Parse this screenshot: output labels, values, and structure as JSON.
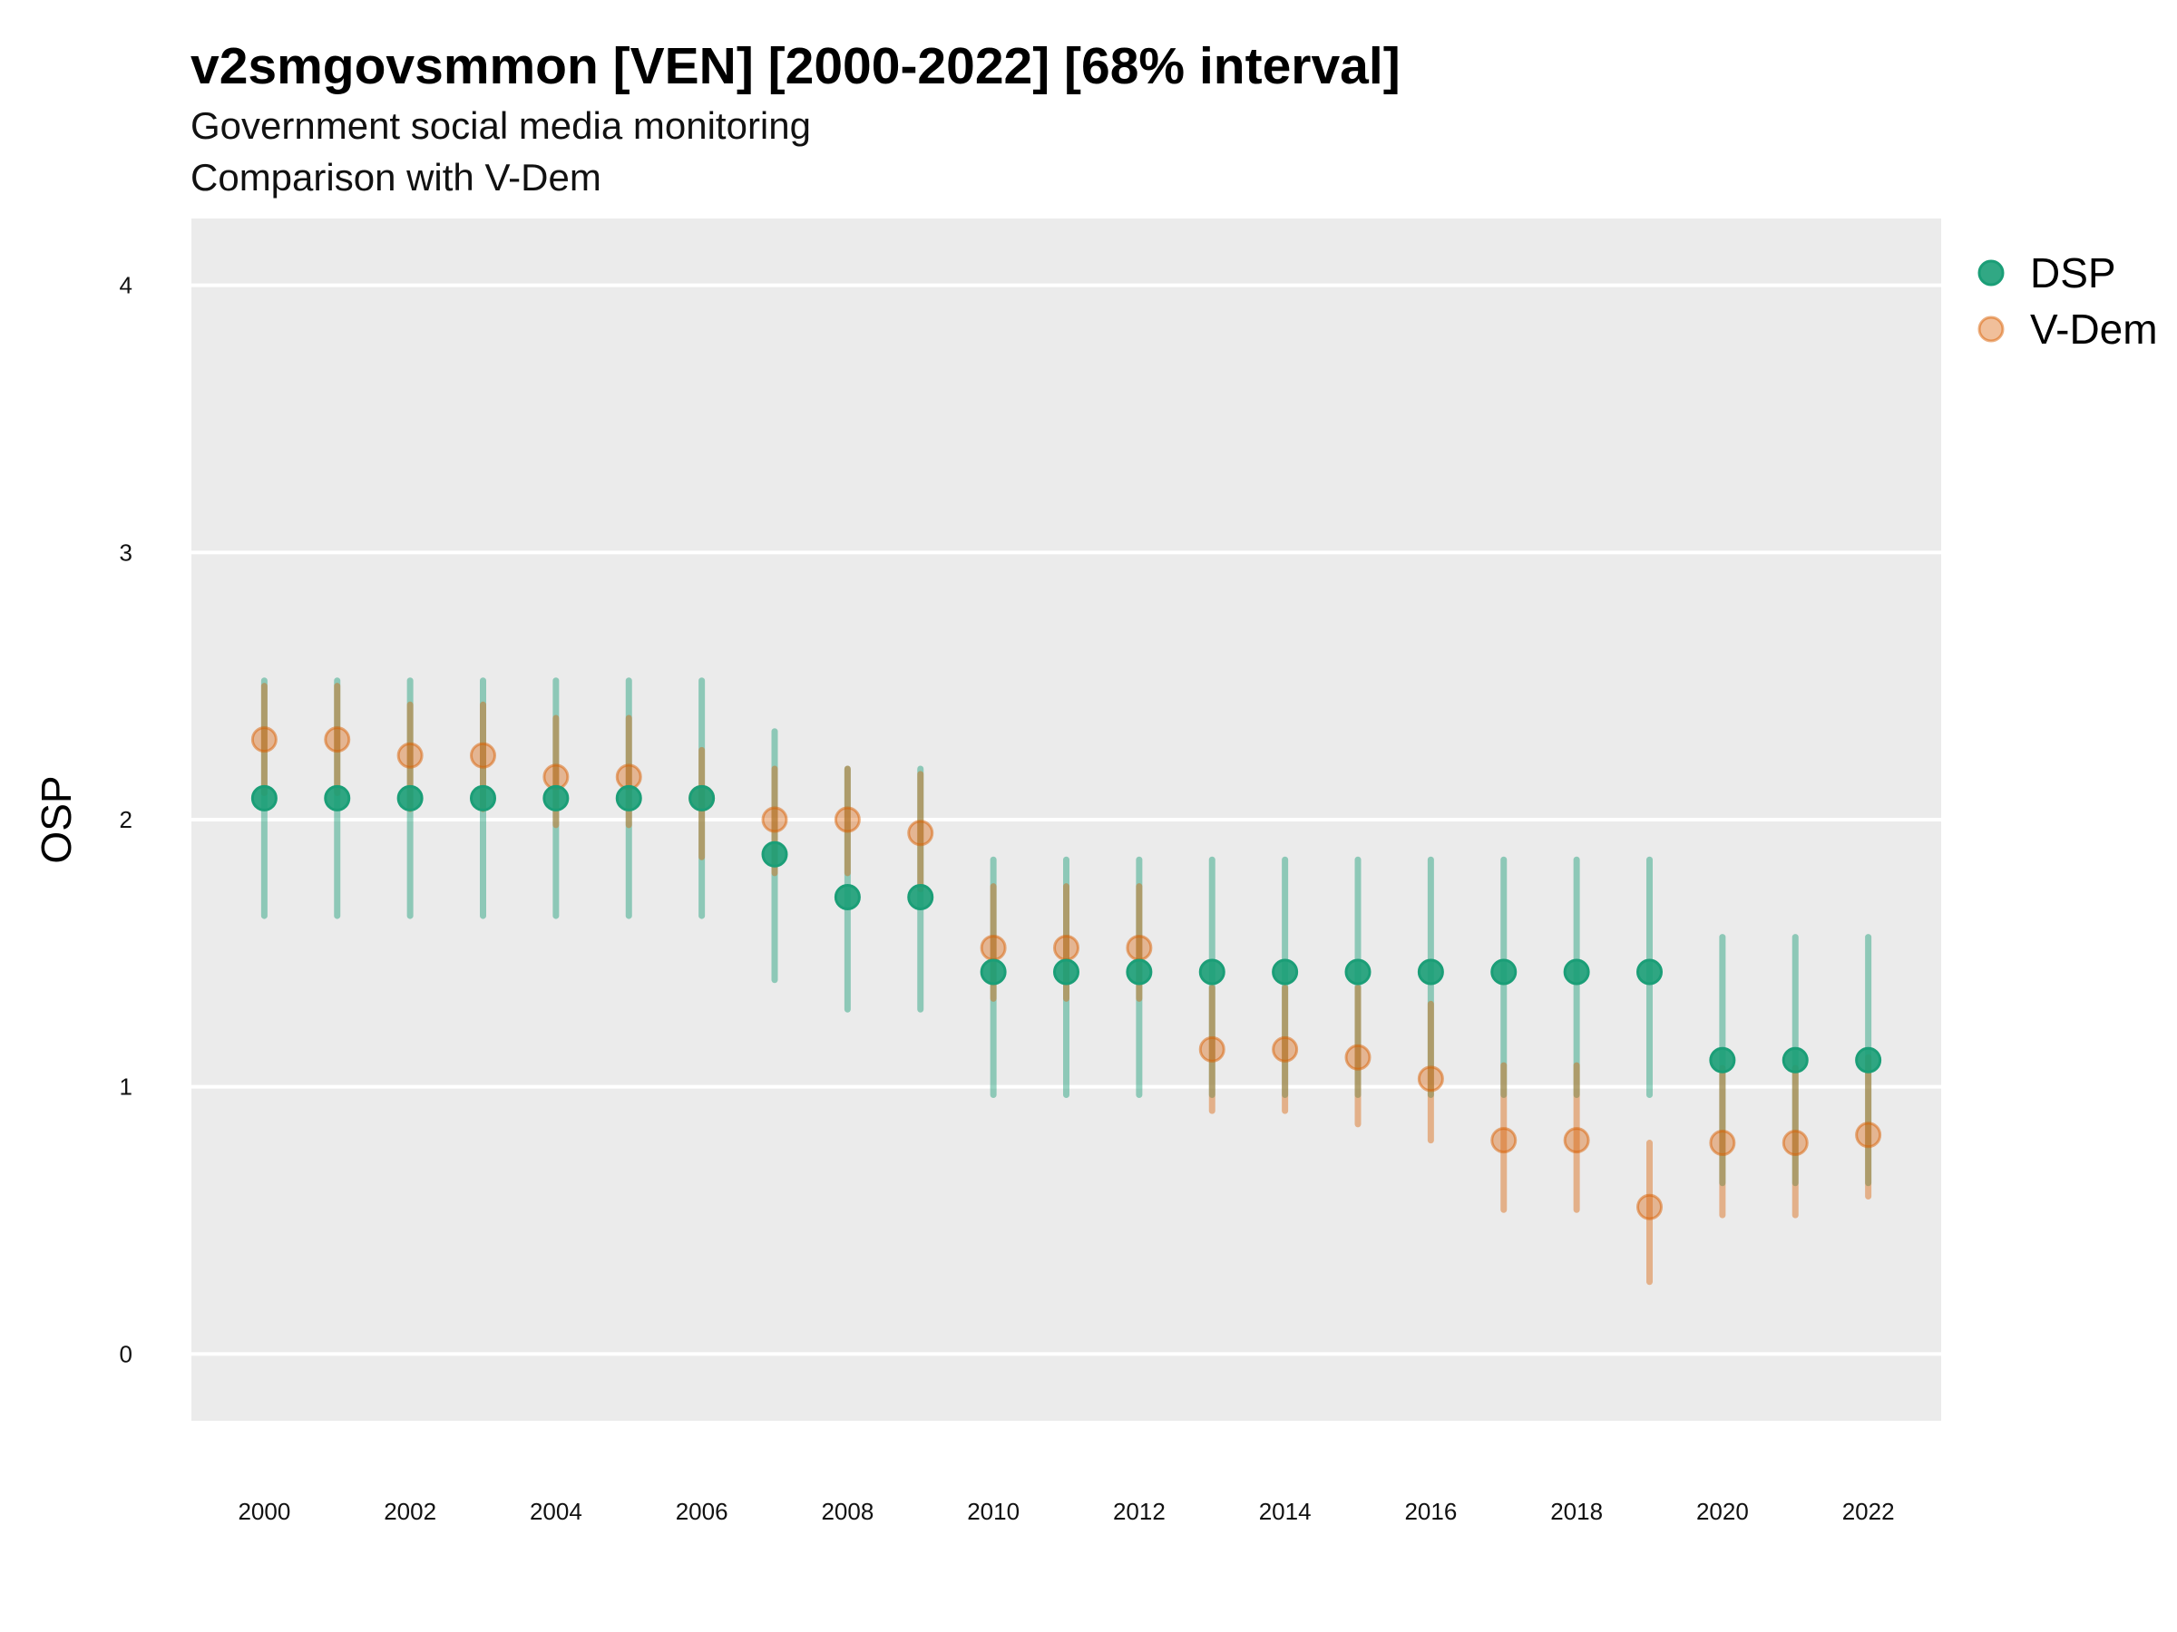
{
  "chart_data": {
    "type": "scatter",
    "title": "v2smgovsmmon [VEN] [2000-2022] [68% interval]",
    "subtitle": "Government social media monitoring",
    "subtitle2": "Comparison with V-Dem",
    "xlabel": "",
    "ylabel": "OSP",
    "xlim": [
      1999,
      2023
    ],
    "ylim": [
      -0.25,
      4.25
    ],
    "x_ticks": [
      2000,
      2002,
      2004,
      2006,
      2008,
      2010,
      2012,
      2014,
      2016,
      2018,
      2020,
      2022
    ],
    "y_ticks": [
      0,
      1,
      2,
      3,
      4
    ],
    "grid": true,
    "legend_position": "top-right",
    "x": [
      2000,
      2001,
      2002,
      2003,
      2004,
      2005,
      2006,
      2007,
      2008,
      2009,
      2010,
      2011,
      2012,
      2013,
      2014,
      2015,
      2016,
      2017,
      2018,
      2019,
      2020,
      2021,
      2022
    ],
    "series": [
      {
        "name": "DSP",
        "color": "#1b9e77",
        "values": [
          2.08,
          2.08,
          2.08,
          2.08,
          2.08,
          2.08,
          2.08,
          1.87,
          1.71,
          1.71,
          1.43,
          1.43,
          1.43,
          1.43,
          1.43,
          1.43,
          1.43,
          1.43,
          1.43,
          1.43,
          1.1,
          1.1,
          1.1
        ],
        "lower": [
          1.64,
          1.64,
          1.64,
          1.64,
          1.64,
          1.64,
          1.64,
          1.4,
          1.29,
          1.29,
          0.97,
          0.97,
          0.97,
          0.97,
          0.97,
          0.97,
          0.97,
          0.97,
          0.97,
          0.97,
          0.64,
          0.64,
          0.64
        ],
        "upper": [
          2.52,
          2.52,
          2.52,
          2.52,
          2.52,
          2.52,
          2.52,
          2.33,
          2.19,
          2.19,
          1.85,
          1.85,
          1.85,
          1.85,
          1.85,
          1.85,
          1.85,
          1.85,
          1.85,
          1.85,
          1.56,
          1.56,
          1.56
        ]
      },
      {
        "name": "V-Dem",
        "color": "#d95f02",
        "values": [
          2.3,
          2.3,
          2.24,
          2.24,
          2.16,
          2.16,
          2.08,
          2.0,
          2.0,
          1.95,
          1.52,
          1.52,
          1.52,
          1.14,
          1.14,
          1.11,
          1.03,
          0.8,
          0.8,
          0.55,
          0.79,
          0.79,
          0.82
        ],
        "lower": [
          2.1,
          2.1,
          2.04,
          2.04,
          1.98,
          1.98,
          1.86,
          1.8,
          1.8,
          1.74,
          1.33,
          1.33,
          1.33,
          0.91,
          0.91,
          0.86,
          0.8,
          0.54,
          0.54,
          0.27,
          0.52,
          0.52,
          0.59
        ],
        "upper": [
          2.5,
          2.5,
          2.43,
          2.43,
          2.38,
          2.38,
          2.26,
          2.19,
          2.19,
          2.17,
          1.75,
          1.75,
          1.75,
          1.37,
          1.37,
          1.37,
          1.31,
          1.08,
          1.08,
          0.79,
          1.07,
          1.07,
          1.11
        ]
      }
    ]
  }
}
